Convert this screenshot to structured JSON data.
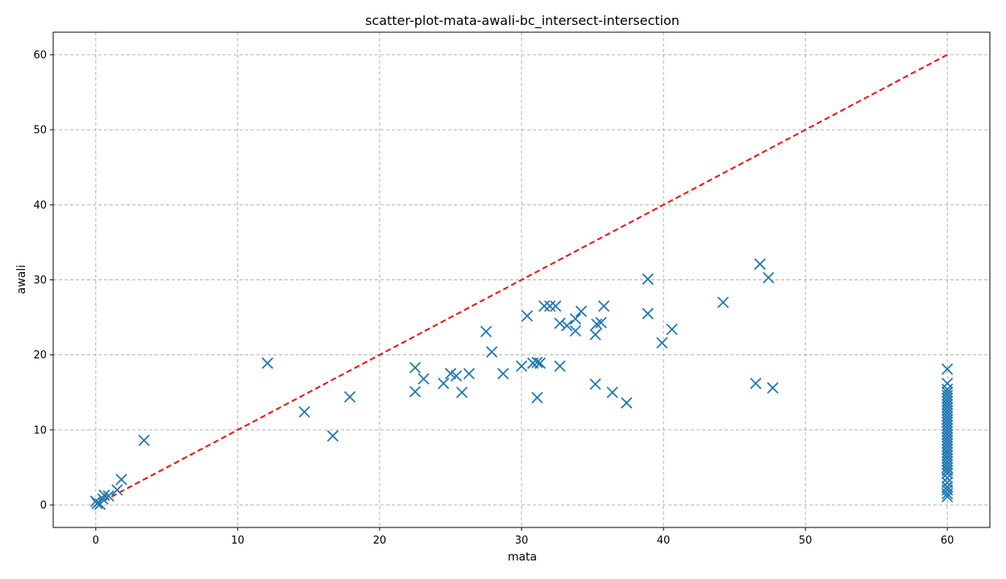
{
  "chart_data": {
    "type": "scatter",
    "title": "scatter-plot-mata-awali-bc_intersect-intersection",
    "xlabel": "mata",
    "ylabel": "awali",
    "xlim": [
      -3,
      63
    ],
    "ylim": [
      -3,
      63
    ],
    "xticks": [
      0,
      10,
      20,
      30,
      40,
      50,
      60
    ],
    "yticks": [
      0,
      10,
      20,
      30,
      40,
      50,
      60
    ],
    "grid": true,
    "marker": "x",
    "point_color": "#1f77b4",
    "reference_line": {
      "x": [
        0,
        60
      ],
      "y": [
        0,
        60
      ],
      "color": "#ff0000",
      "style": "dashed"
    },
    "points": [
      [
        0,
        0.5
      ],
      [
        0.1,
        0.2
      ],
      [
        0.3,
        0.1
      ],
      [
        0.5,
        0.8
      ],
      [
        0.6,
        1.3
      ],
      [
        0.9,
        1.2
      ],
      [
        1.5,
        2.0
      ],
      [
        1.8,
        3.4
      ],
      [
        3.4,
        8.6
      ],
      [
        12.1,
        18.9
      ],
      [
        14.7,
        12.4
      ],
      [
        16.7,
        9.2
      ],
      [
        17.9,
        14.4
      ],
      [
        22.5,
        18.3
      ],
      [
        22.5,
        15.1
      ],
      [
        23.1,
        16.8
      ],
      [
        24.5,
        16.2
      ],
      [
        25.0,
        17.5
      ],
      [
        25.4,
        17.2
      ],
      [
        25.8,
        15.0
      ],
      [
        26.3,
        17.5
      ],
      [
        27.5,
        23.1
      ],
      [
        27.9,
        20.4
      ],
      [
        28.7,
        17.5
      ],
      [
        30.0,
        18.5
      ],
      [
        30.4,
        25.2
      ],
      [
        30.8,
        18.9
      ],
      [
        31.1,
        19.0
      ],
      [
        31.1,
        14.3
      ],
      [
        31.3,
        18.9
      ],
      [
        31.6,
        26.5
      ],
      [
        32.0,
        26.5
      ],
      [
        32.4,
        26.5
      ],
      [
        32.7,
        24.2
      ],
      [
        32.7,
        18.5
      ],
      [
        33.2,
        23.9
      ],
      [
        33.8,
        24.8
      ],
      [
        33.8,
        23.2
      ],
      [
        34.2,
        25.8
      ],
      [
        35.2,
        22.7
      ],
      [
        35.3,
        24.1
      ],
      [
        35.2,
        16.1
      ],
      [
        35.6,
        24.3
      ],
      [
        35.8,
        26.5
      ],
      [
        36.4,
        15.0
      ],
      [
        37.4,
        13.6
      ],
      [
        38.9,
        30.1
      ],
      [
        38.9,
        25.5
      ],
      [
        39.9,
        21.6
      ],
      [
        40.6,
        23.4
      ],
      [
        44.2,
        27.0
      ],
      [
        46.5,
        16.2
      ],
      [
        46.8,
        32.1
      ],
      [
        47.4,
        30.3
      ],
      [
        47.7,
        15.6
      ],
      [
        60,
        18.1
      ],
      [
        60,
        16.2
      ],
      [
        60,
        15.4
      ],
      [
        60,
        15.0
      ],
      [
        60,
        14.6
      ],
      [
        60,
        14.2
      ],
      [
        60,
        13.8
      ],
      [
        60,
        13.4
      ],
      [
        60,
        13.0
      ],
      [
        60,
        12.6
      ],
      [
        60,
        12.2
      ],
      [
        60,
        11.8
      ],
      [
        60,
        11.4
      ],
      [
        60,
        11.0
      ],
      [
        60,
        10.6
      ],
      [
        60,
        10.2
      ],
      [
        60,
        9.8
      ],
      [
        60,
        9.4
      ],
      [
        60,
        9.0
      ],
      [
        60,
        8.6
      ],
      [
        60,
        8.2
      ],
      [
        60,
        7.8
      ],
      [
        60,
        7.4
      ],
      [
        60,
        7.0
      ],
      [
        60,
        6.6
      ],
      [
        60,
        6.2
      ],
      [
        60,
        5.8
      ],
      [
        60,
        5.4
      ],
      [
        60,
        5.0
      ],
      [
        60,
        4.6
      ],
      [
        60,
        4.2
      ],
      [
        60,
        3.6
      ],
      [
        60,
        3.0
      ],
      [
        60,
        2.4
      ],
      [
        60,
        2.0
      ],
      [
        60,
        1.5
      ],
      [
        60,
        1.1
      ]
    ]
  }
}
